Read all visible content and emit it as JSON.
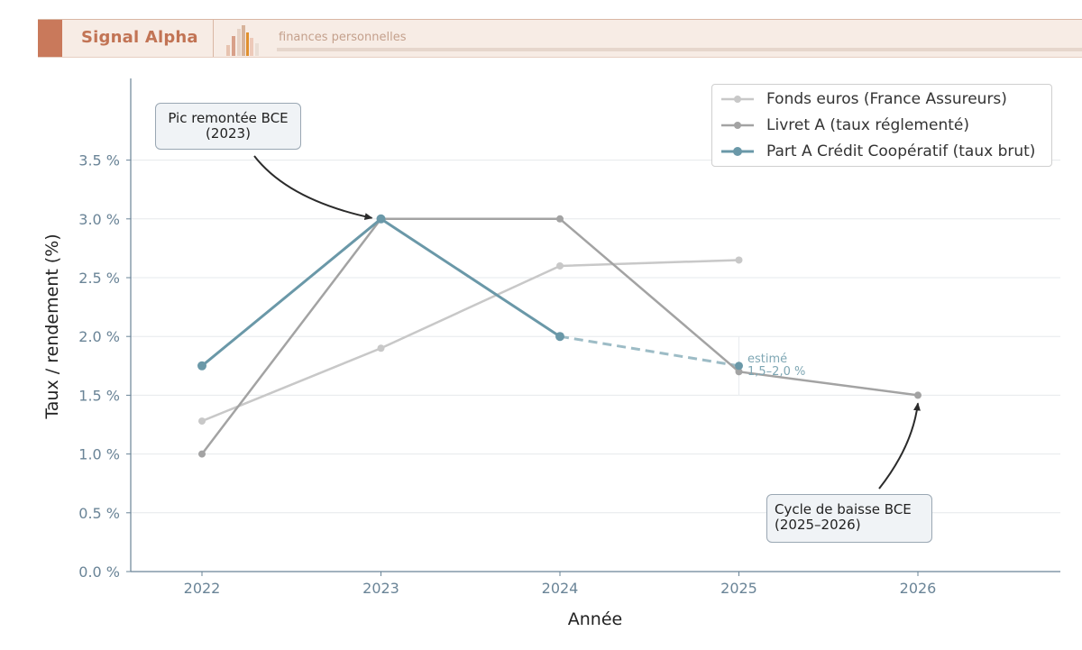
{
  "header": {
    "brand": "Signal Alpha",
    "tagline": "finances personnelles"
  },
  "colors": {
    "brand_accent": "#c9795b",
    "fonds_euros": "#c8c8c8",
    "livret_a": "#a3a3a3",
    "part_a": "#6a98a8",
    "estimate": "#9dbcc6",
    "axis_text": "#6a8497"
  },
  "chart_data": {
    "type": "line",
    "xlabel": "Année",
    "ylabel": "Taux / rendement (%)",
    "x_ticks": [
      "2022",
      "2023",
      "2024",
      "2025",
      "2026"
    ],
    "y_ticks": [
      "0.0 %",
      "0.5 %",
      "1.0 %",
      "1.5 %",
      "2.0 %",
      "2.5 %",
      "3.0 %",
      "3.5 %"
    ],
    "xlim": [
      2021.6,
      2026.8
    ],
    "ylim": [
      0,
      4.2
    ],
    "grid": "horizontal",
    "legend_position": "top-right",
    "series": [
      {
        "name": "Fonds euros (France Assureurs)",
        "x": [
          2022,
          2023,
          2024,
          2025
        ],
        "values": [
          1.28,
          1.9,
          2.6,
          2.65
        ]
      },
      {
        "name": "Livret A (taux réglementé)",
        "x": [
          2022,
          2023,
          2024,
          2025,
          2026
        ],
        "values": [
          1.0,
          3.0,
          3.0,
          1.7,
          1.5
        ]
      },
      {
        "name": "Part A Crédit Coopératif (taux brut)",
        "x": [
          2022,
          2023,
          2024
        ],
        "values": [
          1.75,
          3.0,
          2.0
        ]
      }
    ],
    "estimate": {
      "x": [
        2024,
        2025
      ],
      "values": [
        2.0,
        1.75
      ],
      "label_line1": "estimé",
      "label_line2": "1,5–2,0 %"
    },
    "annotations": [
      {
        "text_line1": "Pic remontée BCE",
        "text_line2": "(2023)",
        "target_x": 2023,
        "target_y": 3.0
      },
      {
        "text_line1": "Cycle de baisse BCE",
        "text_line2": "(2025–2026)",
        "target_x": 2026,
        "target_y": 1.5
      }
    ]
  }
}
